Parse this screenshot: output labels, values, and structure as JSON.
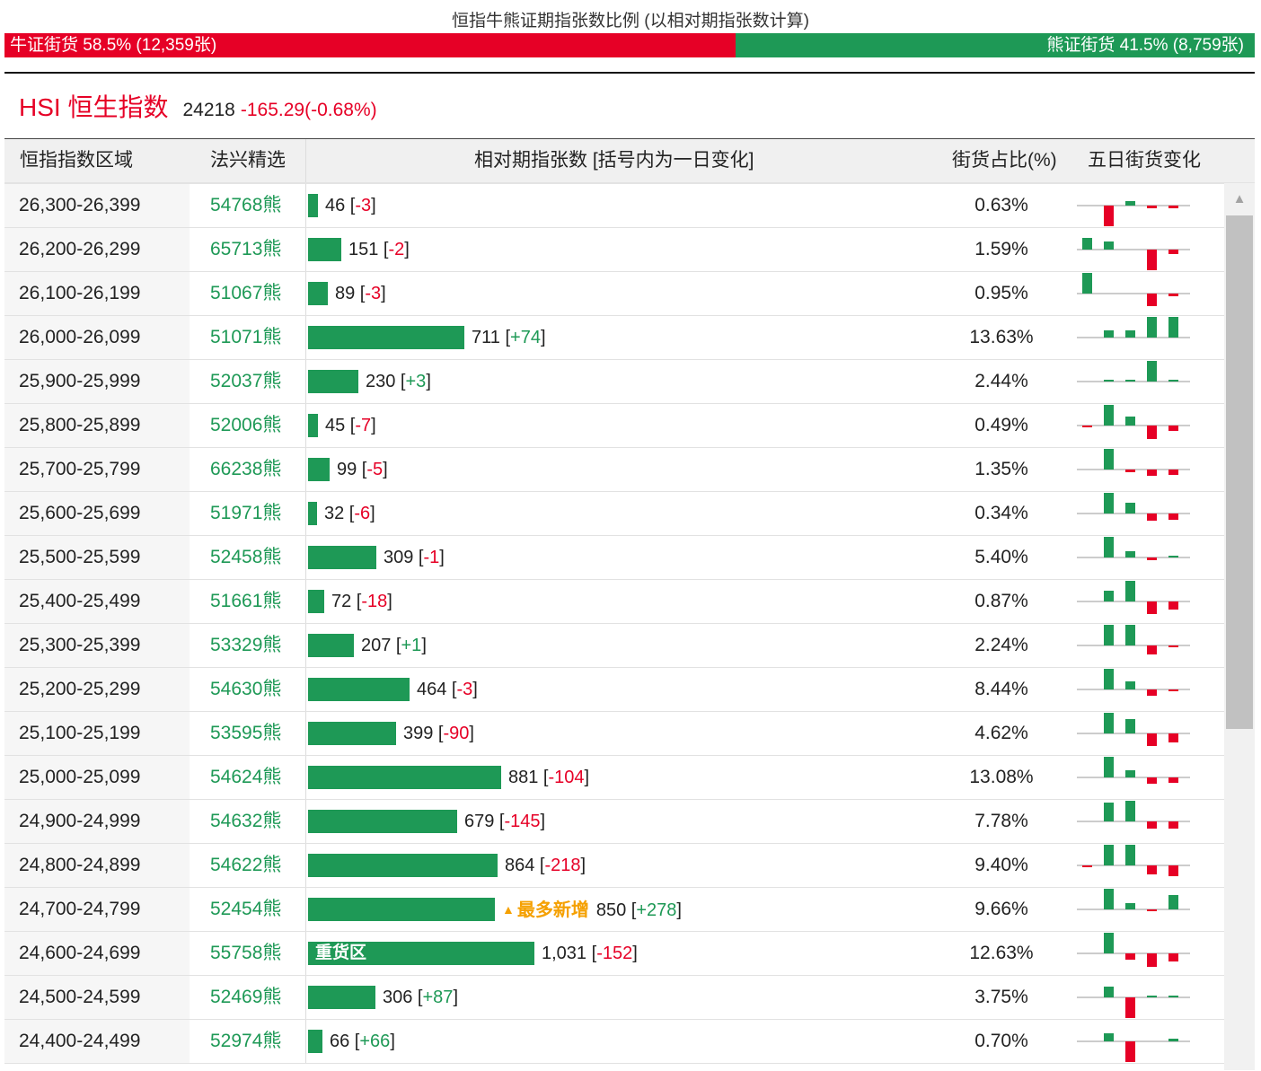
{
  "ratio": {
    "title": "恒指牛熊证期指张数比例 (以相对期指张数计算)",
    "bull_label": "牛证街货 58.5% (12,359张)",
    "bear_label": "熊证街货 41.5% (8,759张)",
    "bull_fraction": 0.585
  },
  "index": {
    "name": "HSI 恒生指数",
    "price": "24218",
    "change": "-165.29(-0.68%)"
  },
  "table": {
    "headers": {
      "range": "恒指指数区域",
      "broker": "法兴精选",
      "contracts": "相对期指张数 [括号内为一日变化]",
      "share": "街货占比(%)",
      "five_day": "五日街货变化"
    },
    "max_value": 1031,
    "rows": [
      {
        "range": "26,300-26,399",
        "code": "54768熊",
        "value": 46,
        "value_text": "46",
        "change": "-3",
        "share": "0.63%",
        "spark": [
          0,
          -1,
          0.2,
          -0.15,
          -0.15
        ]
      },
      {
        "range": "26,200-26,299",
        "code": "65713熊",
        "value": 151,
        "value_text": "151",
        "change": "-2",
        "share": "1.59%",
        "spark": [
          0.55,
          0.4,
          0,
          -1,
          -0.2
        ]
      },
      {
        "range": "26,100-26,199",
        "code": "51067熊",
        "value": 89,
        "value_text": "89",
        "change": "-3",
        "share": "0.95%",
        "spark": [
          1,
          0,
          0,
          -0.6,
          -0.15
        ]
      },
      {
        "range": "26,000-26,099",
        "code": "51071熊",
        "value": 711,
        "value_text": "711",
        "change": "+74",
        "share": "13.63%",
        "spark": [
          0,
          0.35,
          0.35,
          1,
          1
        ]
      },
      {
        "range": "25,900-25,999",
        "code": "52037熊",
        "value": 230,
        "value_text": "230",
        "change": "+3",
        "share": "2.44%",
        "spark": [
          0,
          0.08,
          0.08,
          1,
          0.08
        ]
      },
      {
        "range": "25,800-25,899",
        "code": "52006熊",
        "value": 45,
        "value_text": "45",
        "change": "-7",
        "share": "0.49%",
        "spark": [
          -0.1,
          1,
          0.45,
          -0.65,
          -0.25
        ]
      },
      {
        "range": "25,700-25,799",
        "code": "66238熊",
        "value": 99,
        "value_text": "99",
        "change": "-5",
        "share": "1.35%",
        "spark": [
          0,
          1,
          -0.12,
          -0.3,
          -0.25
        ]
      },
      {
        "range": "25,600-25,699",
        "code": "51971熊",
        "value": 32,
        "value_text": "32",
        "change": "-6",
        "share": "0.34%",
        "spark": [
          0,
          1,
          0.5,
          -0.35,
          -0.3
        ]
      },
      {
        "range": "25,500-25,599",
        "code": "52458熊",
        "value": 309,
        "value_text": "309",
        "change": "-1",
        "share": "5.40%",
        "spark": [
          0,
          1,
          0.3,
          -0.15,
          0.08
        ]
      },
      {
        "range": "25,400-25,499",
        "code": "51661熊",
        "value": 72,
        "value_text": "72",
        "change": "-18",
        "share": "0.87%",
        "spark": [
          0,
          0.5,
          1,
          -0.6,
          -0.4
        ]
      },
      {
        "range": "25,300-25,399",
        "code": "53329熊",
        "value": 207,
        "value_text": "207",
        "change": "+1",
        "share": "2.24%",
        "spark": [
          0,
          1,
          1,
          -0.45,
          -0.1
        ]
      },
      {
        "range": "25,200-25,299",
        "code": "54630熊",
        "value": 464,
        "value_text": "464",
        "change": "-3",
        "share": "8.44%",
        "spark": [
          0,
          1,
          0.4,
          -0.3,
          -0.08
        ]
      },
      {
        "range": "25,100-25,199",
        "code": "53595熊",
        "value": 399,
        "value_text": "399",
        "change": "-90",
        "share": "4.62%",
        "spark": [
          0,
          1,
          0.7,
          -0.6,
          -0.45
        ]
      },
      {
        "range": "25,000-25,099",
        "code": "54624熊",
        "value": 881,
        "value_text": "881",
        "change": "-104",
        "share": "13.08%",
        "spark": [
          0,
          1,
          0.35,
          -0.3,
          -0.25
        ]
      },
      {
        "range": "24,900-24,999",
        "code": "54632熊",
        "value": 679,
        "value_text": "679",
        "change": "-145",
        "share": "7.78%",
        "spark": [
          0,
          0.9,
          1,
          -0.35,
          -0.35
        ]
      },
      {
        "range": "24,800-24,899",
        "code": "54622熊",
        "value": 864,
        "value_text": "864",
        "change": "-218",
        "share": "9.40%",
        "spark": [
          -0.1,
          1,
          1,
          -0.45,
          -0.5
        ]
      },
      {
        "range": "24,700-24,799",
        "code": "52454熊",
        "value": 850,
        "value_text": "850",
        "change": "+278",
        "share": "9.66%",
        "badge": "最多新增",
        "spark": [
          0,
          1,
          0.3,
          -0.08,
          0.7
        ]
      },
      {
        "range": "24,600-24,699",
        "code": "55758熊",
        "value": 1031,
        "value_text": "1,031",
        "change": "-152",
        "share": "12.63%",
        "bar_label": "重货区",
        "spark": [
          0,
          1,
          -0.3,
          -0.65,
          -0.4
        ]
      },
      {
        "range": "24,500-24,599",
        "code": "52469熊",
        "value": 306,
        "value_text": "306",
        "change": "+87",
        "share": "3.75%",
        "spark": [
          0,
          0.5,
          -1,
          0.08,
          0.08
        ]
      },
      {
        "range": "24,400-24,499",
        "code": "52974熊",
        "value": 66,
        "value_text": "66",
        "change": "+66",
        "share": "0.70%",
        "spark": [
          0,
          0.4,
          -1,
          0,
          0.15
        ]
      }
    ]
  },
  "colors": {
    "bull": "#e60026",
    "bear": "#1e9956",
    "badge": "#f5a000"
  },
  "scrollbar": {
    "up_arrow": "▲"
  }
}
